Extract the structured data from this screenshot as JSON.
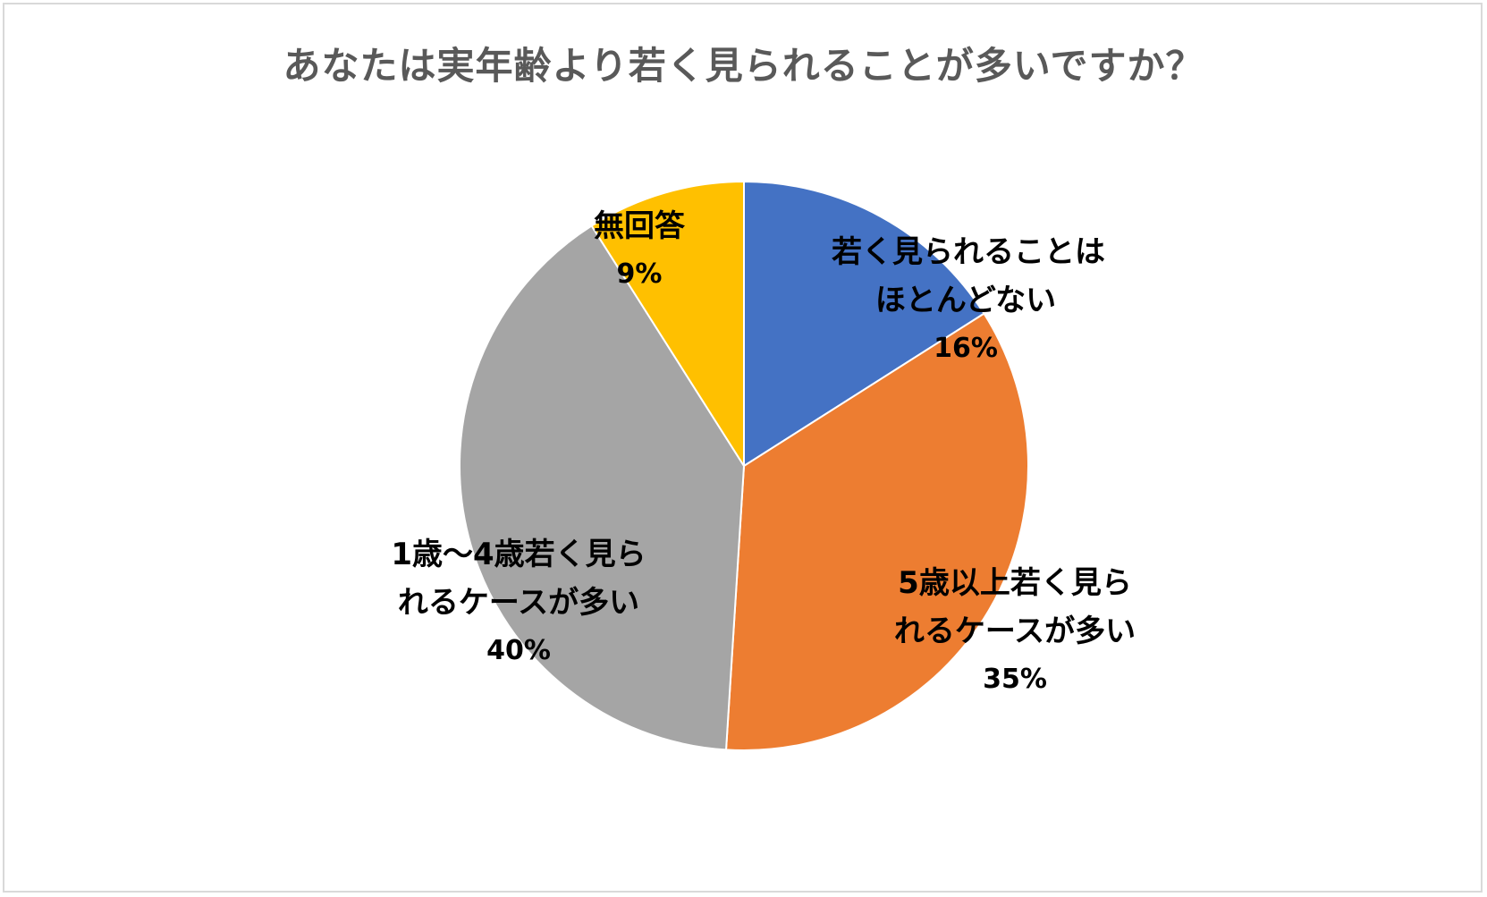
{
  "chart_data": {
    "type": "pie",
    "title": "あなたは実年齢より若く見られることが多いですか？",
    "start_angle_deg": 0,
    "direction": "clockwise",
    "slices": [
      {
        "label_lines": [
          "若く見られることは",
          "ほとんどない"
        ],
        "value": 16,
        "value_label": "16%",
        "color": "#4472C4"
      },
      {
        "label_lines": [
          "5歳以上若く見ら",
          "れるケースが多い"
        ],
        "value": 35,
        "value_label": "35%",
        "color": "#ED7D31"
      },
      {
        "label_lines": [
          "1歳～4歳若く見ら",
          "れるケースが多い"
        ],
        "value": 40,
        "value_label": "40%",
        "color": "#A5A5A5"
      },
      {
        "label_lines": [
          "無回答"
        ],
        "value": 9,
        "value_label": "9%",
        "color": "#FFC000"
      }
    ],
    "legend": "none",
    "data_labels": "inside"
  }
}
